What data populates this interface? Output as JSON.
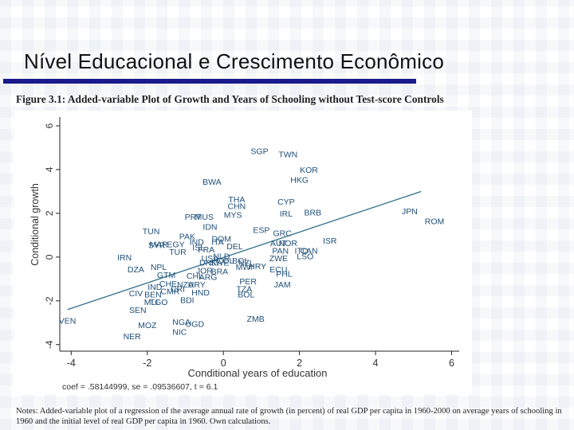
{
  "slide": {
    "title": "Nível Educacional e Crescimento Econômico"
  },
  "figure": {
    "caption": "Figure 3.1: Added-variable Plot of Growth and Years of Schooling without Test-score Controls",
    "stats": "coef = .58144999, se = .09536607, t = 6.1",
    "notes": "Notes: Added-variable plot of a regression of the average annual rate of growth (in percent) of real GDP per capita in 1960-2000 on average years of schooling in 1960 and the initial level of real GDP per capita in 1960. Own calculations."
  },
  "colors": {
    "title_rule": "#1a1a8c",
    "point_label": "#1f4f7a",
    "fit_line": "#3f7a8e",
    "axis": "#222222"
  },
  "chart_data": {
    "type": "scatter",
    "xlabel": "Conditional years of education",
    "ylabel": "Conditional growth",
    "xlim": [
      -4.3,
      6.2
    ],
    "ylim": [
      -4.3,
      6.4
    ],
    "x_ticks": [
      -4,
      -2,
      0,
      2,
      4,
      6
    ],
    "x_tick_labels": [
      "-4",
      "-2",
      "0",
      "2",
      "4",
      "6"
    ],
    "y_ticks": [
      -4,
      -2,
      0,
      2,
      4,
      6
    ],
    "y_tick_labels": [
      "-4",
      "-2",
      "0",
      "2",
      "4",
      "6"
    ],
    "grid": false,
    "fit_line": {
      "x": [
        -4.1,
        5.2
      ],
      "y": [
        -2.4,
        3.0
      ]
    },
    "points": [
      {
        "label": "SGP",
        "x": 0.95,
        "y": 4.85
      },
      {
        "label": "TWN",
        "x": 1.7,
        "y": 4.7
      },
      {
        "label": "KOR",
        "x": 2.25,
        "y": 4.0
      },
      {
        "label": "HKG",
        "x": 2.0,
        "y": 3.55
      },
      {
        "label": "BWA",
        "x": -0.3,
        "y": 3.45
      },
      {
        "label": "THA",
        "x": 0.35,
        "y": 2.65
      },
      {
        "label": "CHN",
        "x": 0.35,
        "y": 2.35
      },
      {
        "label": "CYP",
        "x": 1.65,
        "y": 2.55
      },
      {
        "label": "MYS",
        "x": 0.25,
        "y": 1.95
      },
      {
        "label": "IRL",
        "x": 1.65,
        "y": 2.0
      },
      {
        "label": "BRB",
        "x": 2.35,
        "y": 2.05
      },
      {
        "label": "JPN",
        "x": 4.9,
        "y": 2.1
      },
      {
        "label": "ROM",
        "x": 5.55,
        "y": 1.65
      },
      {
        "label": "PRT",
        "x": -0.8,
        "y": 1.85
      },
      {
        "label": "MUS",
        "x": -0.5,
        "y": 1.85
      },
      {
        "label": "IDN",
        "x": -0.35,
        "y": 1.4
      },
      {
        "label": "ESP",
        "x": 1.0,
        "y": 1.25
      },
      {
        "label": "GRC",
        "x": 1.55,
        "y": 1.1
      },
      {
        "label": "TUN",
        "x": -1.9,
        "y": 1.2
      },
      {
        "label": "PAK",
        "x": -0.95,
        "y": 0.95
      },
      {
        "label": "DOM",
        "x": -0.05,
        "y": 0.85
      },
      {
        "label": "AUT",
        "x": 1.45,
        "y": 0.65
      },
      {
        "label": "NOR",
        "x": 1.7,
        "y": 0.65
      },
      {
        "label": "ISR",
        "x": 2.8,
        "y": 0.75
      },
      {
        "label": "MAR",
        "x": -1.7,
        "y": 0.6
      },
      {
        "label": "EGY",
        "x": -1.25,
        "y": 0.6
      },
      {
        "label": "IND",
        "x": -0.7,
        "y": 0.7
      },
      {
        "label": "ISL",
        "x": -0.65,
        "y": 0.45
      },
      {
        "label": "PAN",
        "x": 1.5,
        "y": 0.3
      },
      {
        "label": "ITA",
        "x": -0.15,
        "y": 0.7
      },
      {
        "label": "DEL",
        "x": 0.3,
        "y": 0.5
      },
      {
        "label": "SYR",
        "x": -1.75,
        "y": 0.55
      },
      {
        "label": "TUR",
        "x": -1.2,
        "y": 0.25
      },
      {
        "label": "FRA",
        "x": -0.45,
        "y": 0.35
      },
      {
        "label": "ITD",
        "x": 2.05,
        "y": 0.3
      },
      {
        "label": "CAN",
        "x": 2.25,
        "y": 0.3
      },
      {
        "label": "LSO",
        "x": 2.15,
        "y": 0.05
      },
      {
        "label": "ZWE",
        "x": 1.45,
        "y": -0.05
      },
      {
        "label": "IRN",
        "x": -2.6,
        "y": 0.0
      },
      {
        "label": "NLD",
        "x": -0.05,
        "y": 0.05
      },
      {
        "label": "USA",
        "x": -0.35,
        "y": -0.05
      },
      {
        "label": "COL",
        "x": 0.05,
        "y": -0.15
      },
      {
        "label": "BOL",
        "x": 0.45,
        "y": -0.15
      },
      {
        "label": "DNK",
        "x": -0.4,
        "y": -0.25
      },
      {
        "label": "SWE",
        "x": -0.1,
        "y": -0.25
      },
      {
        "label": "NZL",
        "x": 0.6,
        "y": -0.25
      },
      {
        "label": "HRY",
        "x": 0.9,
        "y": -0.4
      },
      {
        "label": "MWI",
        "x": 0.55,
        "y": -0.45
      },
      {
        "label": "DZA",
        "x": -2.3,
        "y": -0.55
      },
      {
        "label": "NPL",
        "x": -1.7,
        "y": -0.45
      },
      {
        "label": "ECU",
        "x": 1.45,
        "y": -0.55
      },
      {
        "label": "PHL",
        "x": 1.6,
        "y": -0.75
      },
      {
        "label": "JOR",
        "x": -0.5,
        "y": -0.6
      },
      {
        "label": "BRA",
        "x": -0.1,
        "y": -0.65
      },
      {
        "label": "GTM",
        "x": -1.5,
        "y": -0.8
      },
      {
        "label": "CHL",
        "x": -0.75,
        "y": -0.85
      },
      {
        "label": "ARG",
        "x": -0.4,
        "y": -0.9
      },
      {
        "label": "PER",
        "x": 0.65,
        "y": -1.1
      },
      {
        "label": "CHE",
        "x": -1.45,
        "y": -1.2
      },
      {
        "label": "NZA",
        "x": -1.0,
        "y": -1.25
      },
      {
        "label": "URY",
        "x": -0.7,
        "y": -1.25
      },
      {
        "label": "JAM",
        "x": 1.55,
        "y": -1.25
      },
      {
        "label": "IND",
        "x": -1.8,
        "y": -1.35
      },
      {
        "label": "CRI",
        "x": -1.2,
        "y": -1.45
      },
      {
        "label": "TZA",
        "x": 0.55,
        "y": -1.45
      },
      {
        "label": "CIV",
        "x": -2.3,
        "y": -1.65
      },
      {
        "label": "BEN",
        "x": -1.85,
        "y": -1.7
      },
      {
        "label": "CMR",
        "x": -1.4,
        "y": -1.55
      },
      {
        "label": "HND",
        "x": -0.6,
        "y": -1.6
      },
      {
        "label": "BOL",
        "x": 0.6,
        "y": -1.7
      },
      {
        "label": "MLI",
        "x": -1.9,
        "y": -2.05
      },
      {
        "label": "TGO",
        "x": -1.7,
        "y": -2.05
      },
      {
        "label": "BDI",
        "x": -0.95,
        "y": -1.95
      },
      {
        "label": "SEN",
        "x": -2.25,
        "y": -2.4
      },
      {
        "label": "ZMB",
        "x": 0.85,
        "y": -2.8
      },
      {
        "label": "VEN",
        "x": -4.1,
        "y": -2.9
      },
      {
        "label": "MOZ",
        "x": -2.0,
        "y": -3.1
      },
      {
        "label": "NGA",
        "x": -1.1,
        "y": -2.95
      },
      {
        "label": "UGD",
        "x": -0.75,
        "y": -3.05
      },
      {
        "label": "NIC",
        "x": -1.15,
        "y": -3.4
      },
      {
        "label": "NER",
        "x": -2.4,
        "y": -3.6
      }
    ]
  }
}
